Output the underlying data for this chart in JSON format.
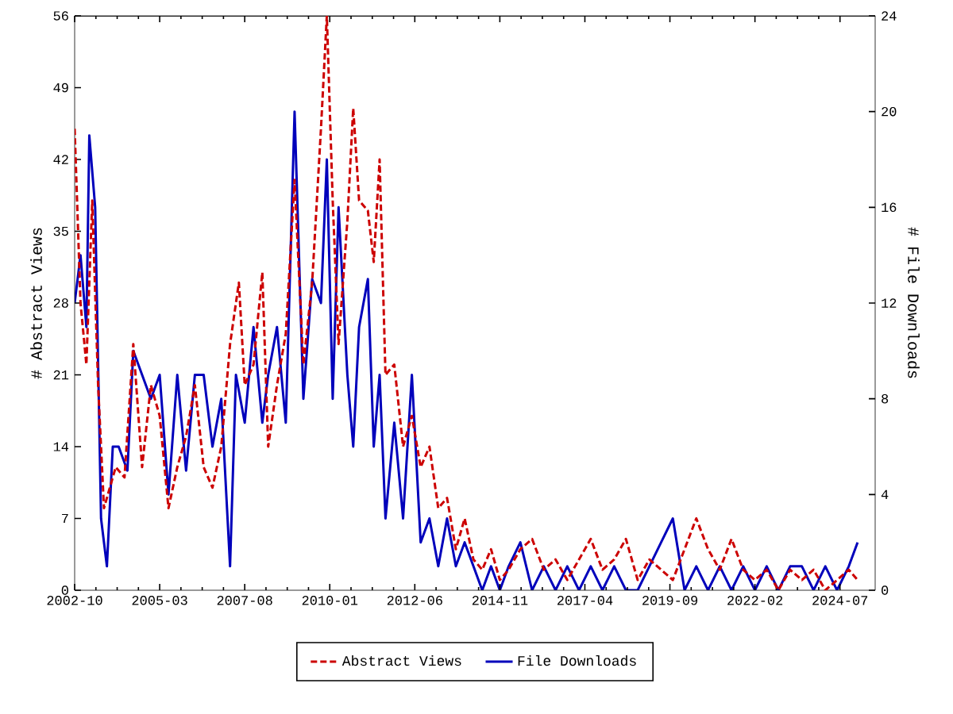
{
  "chart_data": {
    "type": "line",
    "xlabel": null,
    "ylabel": "# Abstract Views",
    "y2label": "# File Downloads",
    "xlim": [
      "2002-10",
      "2025-07"
    ],
    "xticks": [
      "2002-10",
      "2005-03",
      "2007-08",
      "2010-01",
      "2012-06",
      "2014-11",
      "2017-04",
      "2019-09",
      "2022-02",
      "2024-07"
    ],
    "ylim": [
      0,
      56
    ],
    "yticks": [
      0,
      7,
      14,
      21,
      28,
      35,
      42,
      49,
      56
    ],
    "y2lim": [
      0,
      24
    ],
    "y2ticks": [
      0,
      4,
      8,
      12,
      16,
      20,
      24
    ],
    "legend": "bottom",
    "grid": false,
    "series": [
      {
        "name": "Abstract Views",
        "color": "#cc0000",
        "line_style": "dashed",
        "x": [
          "2002-10",
          "2002-12",
          "2003-02",
          "2003-04",
          "2003-06",
          "2003-08",
          "2003-10",
          "2003-12",
          "2004-03",
          "2004-06",
          "2004-09",
          "2004-12",
          "2005-03",
          "2005-06",
          "2005-09",
          "2005-12",
          "2006-03",
          "2006-06",
          "2006-09",
          "2006-12",
          "2007-03",
          "2007-06",
          "2007-08",
          "2007-11",
          "2008-02",
          "2008-04",
          "2008-07",
          "2008-10",
          "2009-01",
          "2009-04",
          "2009-07",
          "2009-10",
          "2009-12",
          "2010-02",
          "2010-04",
          "2010-07",
          "2010-09",
          "2010-11",
          "2011-02",
          "2011-04",
          "2011-06",
          "2011-08",
          "2011-11",
          "2012-02",
          "2012-05",
          "2012-08",
          "2012-11",
          "2013-02",
          "2013-05",
          "2013-08",
          "2013-11",
          "2014-02",
          "2014-05",
          "2014-08",
          "2014-11",
          "2015-02",
          "2015-06",
          "2015-10",
          "2016-02",
          "2016-06",
          "2016-10",
          "2017-02",
          "2017-06",
          "2017-10",
          "2018-02",
          "2018-06",
          "2018-10",
          "2019-02",
          "2019-06",
          "2019-10",
          "2020-02",
          "2020-06",
          "2020-10",
          "2021-02",
          "2021-06",
          "2021-10",
          "2022-02",
          "2022-06",
          "2022-10",
          "2023-02",
          "2023-06",
          "2023-10",
          "2024-02",
          "2024-06",
          "2024-10",
          "2025-01"
        ],
        "values": [
          45,
          28,
          22,
          38,
          20,
          8,
          10,
          12,
          11,
          24,
          12,
          20,
          17,
          8,
          12,
          15,
          20,
          12,
          10,
          14,
          24,
          30,
          20,
          22,
          31,
          14,
          20,
          25,
          40,
          22,
          30,
          45,
          56,
          38,
          24,
          36,
          47,
          38,
          37,
          32,
          42,
          21,
          22,
          14,
          17,
          12,
          14,
          8,
          9,
          4,
          7,
          3,
          2,
          4,
          1,
          2,
          4,
          5,
          2,
          3,
          1,
          3,
          5,
          2,
          3,
          5,
          1,
          3,
          2,
          1,
          4,
          7,
          4,
          2,
          5,
          2,
          1,
          2,
          0,
          2,
          1,
          2,
          0,
          1,
          2,
          1
        ]
      },
      {
        "name": "File Downloads",
        "color": "#0000bb",
        "line_style": "solid",
        "axis": "y2",
        "x": [
          "2002-10",
          "2002-12",
          "2003-02",
          "2003-03",
          "2003-05",
          "2003-07",
          "2003-09",
          "2003-11",
          "2004-01",
          "2004-04",
          "2004-06",
          "2004-09",
          "2004-12",
          "2005-03",
          "2005-06",
          "2005-09",
          "2005-12",
          "2006-03",
          "2006-06",
          "2006-09",
          "2006-12",
          "2007-03",
          "2007-05",
          "2007-08",
          "2007-11",
          "2008-02",
          "2008-04",
          "2008-07",
          "2008-10",
          "2009-01",
          "2009-04",
          "2009-07",
          "2009-10",
          "2009-12",
          "2010-02",
          "2010-04",
          "2010-07",
          "2010-09",
          "2010-11",
          "2011-02",
          "2011-04",
          "2011-06",
          "2011-08",
          "2011-11",
          "2012-02",
          "2012-05",
          "2012-08",
          "2012-11",
          "2013-02",
          "2013-05",
          "2013-08",
          "2013-11",
          "2014-02",
          "2014-05",
          "2014-08",
          "2014-11",
          "2015-02",
          "2015-06",
          "2015-10",
          "2016-02",
          "2016-06",
          "2016-10",
          "2017-02",
          "2017-06",
          "2017-10",
          "2018-02",
          "2018-06",
          "2018-10",
          "2019-02",
          "2019-06",
          "2019-10",
          "2020-02",
          "2020-06",
          "2020-10",
          "2021-02",
          "2021-06",
          "2021-10",
          "2022-02",
          "2022-06",
          "2022-10",
          "2023-02",
          "2023-06",
          "2023-10",
          "2024-02",
          "2024-06",
          "2024-10",
          "2025-01"
        ],
        "values": [
          12,
          14,
          11,
          19,
          16,
          3,
          1,
          6,
          6,
          5,
          10,
          9,
          8,
          9,
          4,
          9,
          5,
          9,
          9,
          6,
          8,
          1,
          9,
          7,
          11,
          7,
          9,
          11,
          7,
          20,
          8,
          13,
          12,
          18,
          8,
          16,
          9,
          6,
          11,
          13,
          6,
          9,
          3,
          7,
          3,
          9,
          2,
          3,
          1,
          3,
          1,
          2,
          1,
          0,
          1,
          0,
          1,
          2,
          0,
          1,
          0,
          1,
          0,
          1,
          0,
          1,
          0,
          0,
          1,
          2,
          3,
          0,
          1,
          0,
          1,
          0,
          1,
          0,
          1,
          0,
          1,
          1,
          0,
          1,
          0,
          1,
          2
        ]
      }
    ]
  }
}
